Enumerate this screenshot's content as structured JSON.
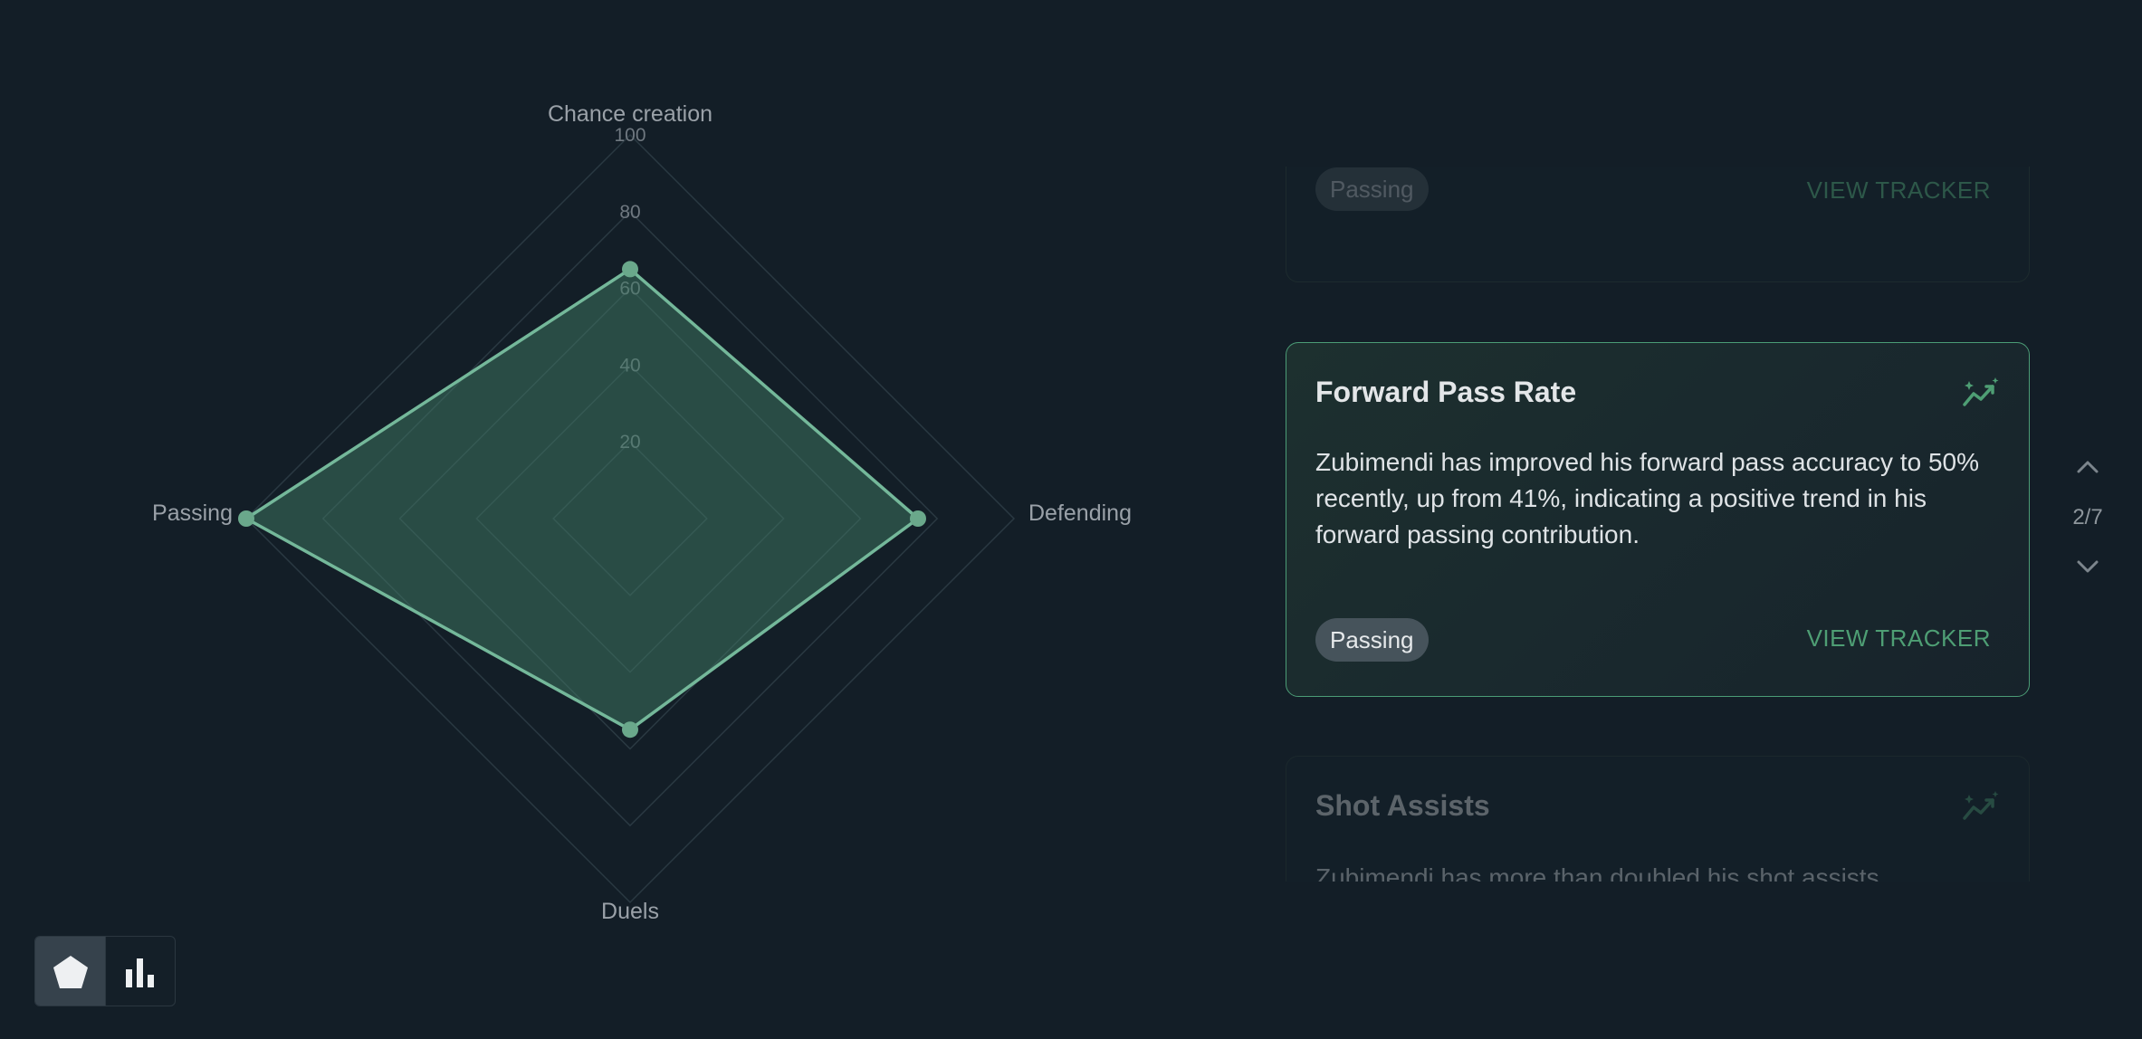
{
  "chart_data": {
    "type": "radar",
    "axes": [
      "Chance creation",
      "Defending",
      "Duels",
      "Passing"
    ],
    "values": [
      65,
      75,
      55,
      100
    ],
    "rlim": [
      0,
      100
    ],
    "ticks": [
      "20",
      "40",
      "60",
      "80",
      "100"
    ],
    "colors": {
      "fill": "#3f7a63",
      "stroke": "#74b89a",
      "grid": "#2a3942"
    }
  },
  "view_toggle": {
    "options": [
      {
        "icon": "pentagon-icon",
        "active": true
      },
      {
        "icon": "bar-chart-icon",
        "active": false
      }
    ]
  },
  "cards": {
    "previous": {
      "tag": "Passing",
      "action": "VIEW TRACKER"
    },
    "current": {
      "title": "Forward Pass Rate",
      "icon": "trend-sparkle-icon",
      "body": "Zubimendi has improved his forward pass accuracy to 50% recently, up from 41%, indicating a positive trend in his forward passing contribution.",
      "tag": "Passing",
      "action": "VIEW TRACKER"
    },
    "next": {
      "title": "Shot Assists",
      "icon": "trend-sparkle-icon",
      "body": "Zubimendi has more than doubled his shot assists"
    }
  },
  "pager": {
    "label": "2/7"
  },
  "colors": {
    "background": "#131e27",
    "accent": "#4e9e74",
    "card_border_active": "#4b9c76"
  }
}
